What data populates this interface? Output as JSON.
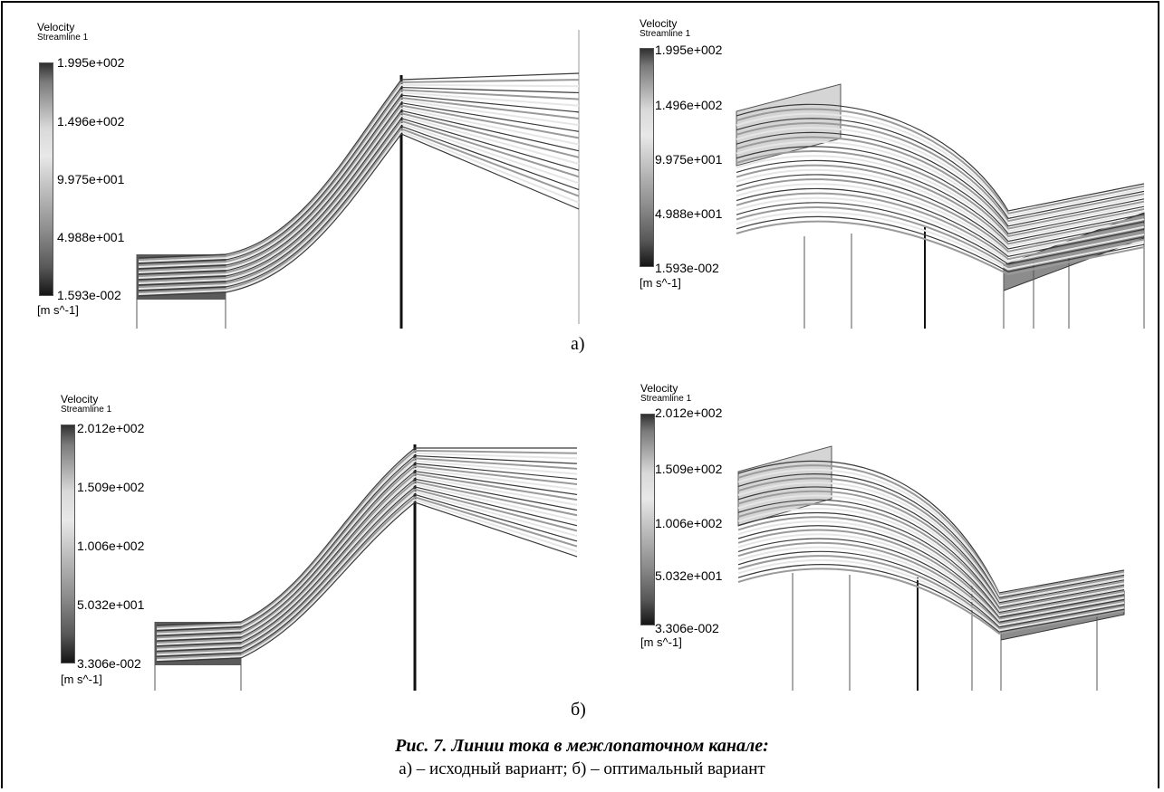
{
  "figure": {
    "panels": [
      {
        "id": "a-left",
        "legend": {
          "title": "Velocity",
          "subtitle": "Streamline 1",
          "ticks": [
            "1.995e+002",
            "1.496e+002",
            "9.975e+001",
            "4.988e+001",
            "1.593e-002"
          ],
          "unit": "[m s^-1]"
        }
      },
      {
        "id": "a-right",
        "legend": {
          "title": "Velocity",
          "subtitle": "Streamline 1",
          "ticks": [
            "1.995e+002",
            "1.496e+002",
            "9.975e+001",
            "4.988e+001",
            "1.593e-002"
          ],
          "unit": "[m s^-1]"
        }
      },
      {
        "id": "b-left",
        "legend": {
          "title": "Velocity",
          "subtitle": "Streamline 1",
          "ticks": [
            "2.012e+002",
            "1.509e+002",
            "1.006e+002",
            "5.032e+001",
            "3.306e-002"
          ],
          "unit": "[m s^-1]"
        }
      },
      {
        "id": "b-right",
        "legend": {
          "title": "Velocity",
          "subtitle": "Streamline 1",
          "ticks": [
            "2.012e+002",
            "1.509e+002",
            "1.006e+002",
            "5.032e+001",
            "3.306e-002"
          ],
          "unit": "[m s^-1]"
        }
      }
    ],
    "sublabels": {
      "a": "а)",
      "b": "б)"
    },
    "caption": {
      "title": "Рис. 7. Линии тока в межлопаточном канале:",
      "text": "а) – исходный вариант; б) – оптимальный вариант"
    },
    "colors": {
      "stream_light": "#e6e6e6",
      "stream_dark": "#3a3a3a",
      "face": "#8c8c8c"
    }
  }
}
